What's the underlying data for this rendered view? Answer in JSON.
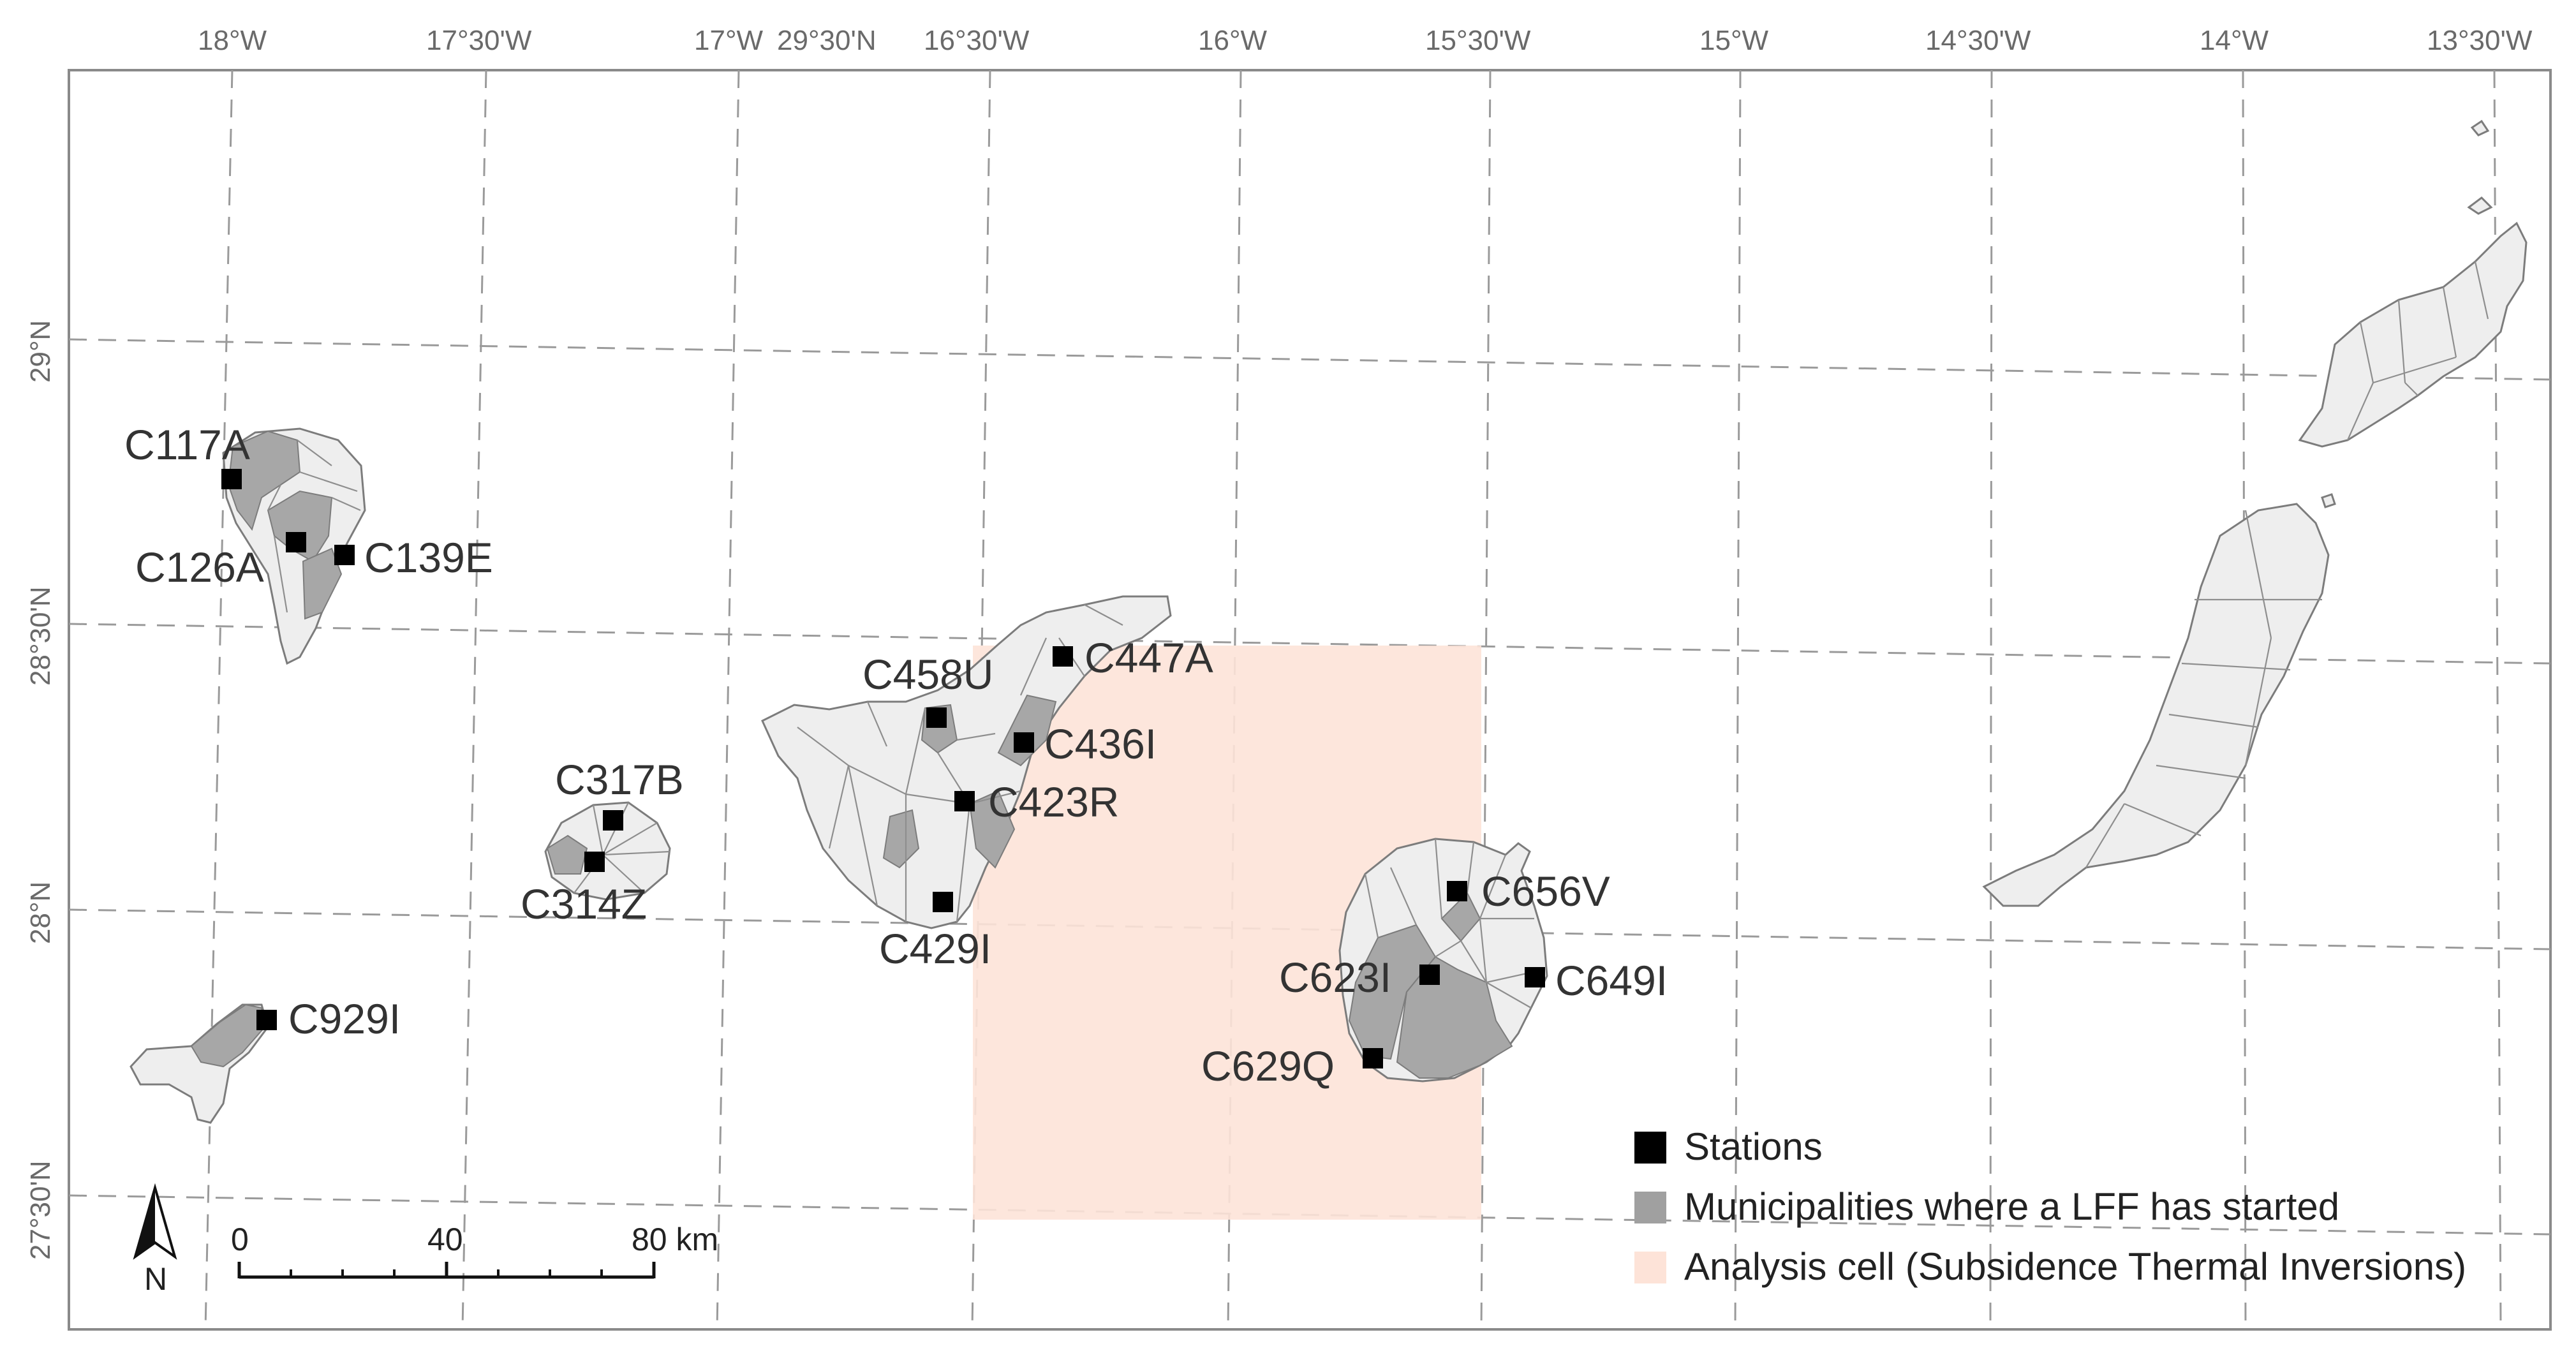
{
  "map": {
    "longitude_labels": [
      "18°W",
      "17°30'W",
      "17°W",
      "16°30'W",
      "16°W",
      "15°30'W",
      "15°W",
      "14°30'W",
      "14°W",
      "13°30'W"
    ],
    "stray_label": "29°30'N",
    "latitude_labels": [
      "29°N",
      "28°30'N",
      "28°N",
      "27°30'N"
    ],
    "stations": [
      {
        "id": "C117A"
      },
      {
        "id": "C126A"
      },
      {
        "id": "C139E"
      },
      {
        "id": "C317B"
      },
      {
        "id": "C314Z"
      },
      {
        "id": "C929I"
      },
      {
        "id": "C458U"
      },
      {
        "id": "C447A"
      },
      {
        "id": "C436I"
      },
      {
        "id": "C423R"
      },
      {
        "id": "C429I"
      },
      {
        "id": "C656V"
      },
      {
        "id": "C623I"
      },
      {
        "id": "C649I"
      },
      {
        "id": "C629Q"
      }
    ],
    "legend": {
      "stations": "Stations",
      "municipalities": "Municipalities where a LFF has started",
      "analysis_cell": "Analysis cell (Subsidence Thermal Inversions)"
    },
    "scale_bar": {
      "label_0": "0",
      "label_40": "40",
      "label_80": "80 km"
    },
    "north_arrow": "N",
    "colors": {
      "station": "#000000",
      "municipality_fire": "#a7a7a7",
      "analysis_cell": "#fde3d8",
      "island": "#eeeeee"
    }
  }
}
